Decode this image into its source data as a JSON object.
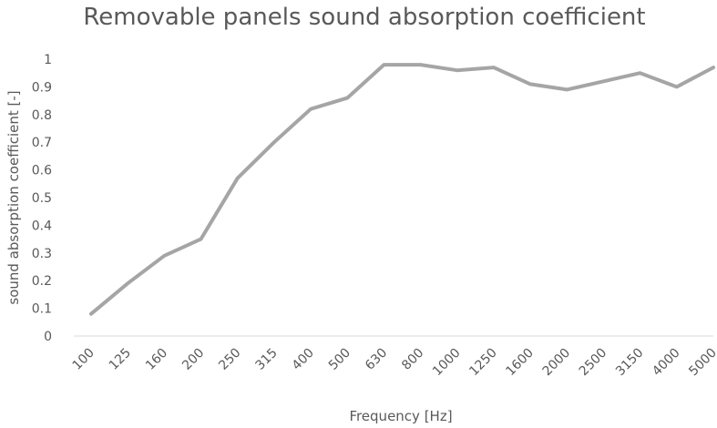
{
  "chart_data": {
    "type": "line",
    "title": "Removable panels sound absorption coefficient",
    "xlabel": "Frequency [Hz]",
    "ylabel": "sound absorption coefficient [-]",
    "categories": [
      "100",
      "125",
      "160",
      "200",
      "250",
      "315",
      "400",
      "500",
      "630",
      "800",
      "1000",
      "1250",
      "1600",
      "2000",
      "2500",
      "3150",
      "4000",
      "5000"
    ],
    "series": [
      {
        "values": [
          0.08,
          0.19,
          0.29,
          0.35,
          0.57,
          0.7,
          0.82,
          0.86,
          0.98,
          0.98,
          0.96,
          0.97,
          0.91,
          0.89,
          0.92,
          0.95,
          0.9,
          0.97
        ]
      }
    ],
    "ylim": [
      0,
      1
    ],
    "yticks": [
      "0",
      "0.1",
      "0.2",
      "0.3",
      "0.4",
      "0.5",
      "0.6",
      "0.7",
      "0.8",
      "0.9",
      "1"
    ],
    "grid": false,
    "legend": "none",
    "series_color": "#a5a5a5"
  }
}
